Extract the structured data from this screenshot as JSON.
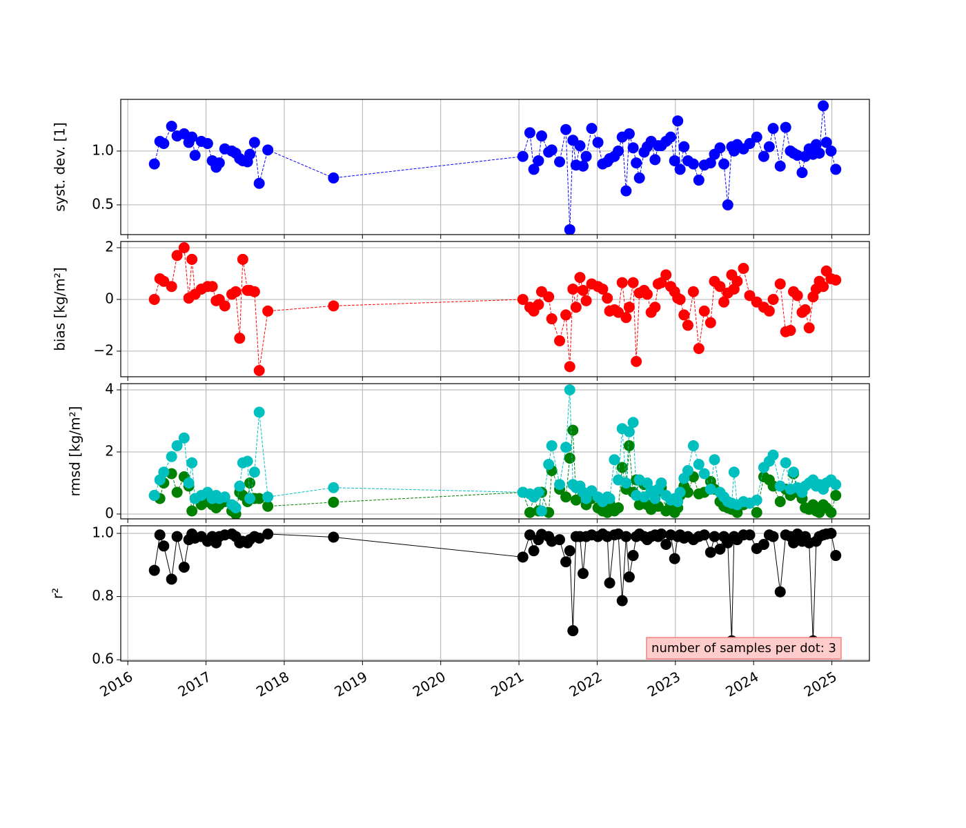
{
  "chart_data": [
    {
      "type": "line",
      "ylabel": "syst. dev. [1]",
      "line_style": "dashed",
      "grid": true,
      "xlim": [
        2015.91,
        2025.48
      ],
      "xticks": [
        2016,
        2017,
        2018,
        2019,
        2020,
        2021,
        2022,
        2023,
        2024,
        2025
      ],
      "ylim": [
        0.224,
        1.48
      ],
      "yticks": [
        {
          "value": 0.5,
          "label": "0.5"
        },
        {
          "value": 1,
          "label": "1.0"
        }
      ],
      "x": [
        2016.34,
        2016.41,
        2016.46,
        2016.56,
        2016.63,
        2016.72,
        2016.78,
        2016.82,
        2016.86,
        2016.94,
        2017.02,
        2017.08,
        2017.13,
        2017.17,
        2017.24,
        2017.33,
        2017.38,
        2017.43,
        2017.47,
        2017.53,
        2017.56,
        2017.62,
        2017.68,
        2017.79,
        2018.63,
        2021.05,
        2021.14,
        2021.19,
        2021.25,
        2021.29,
        2021.38,
        2021.42,
        2021.52,
        2021.6,
        2021.65,
        2021.69,
        2021.73,
        2021.78,
        2021.82,
        2021.86,
        2021.93,
        2022.01,
        2022.07,
        2022.13,
        2022.16,
        2022.22,
        2022.27,
        2022.32,
        2022.37,
        2022.41,
        2022.46,
        2022.5,
        2022.54,
        2022.6,
        2022.64,
        2022.69,
        2022.74,
        2022.78,
        2022.82,
        2022.88,
        2022.94,
        2022.99,
        2023.03,
        2023.06,
        2023.11,
        2023.16,
        2023.23,
        2023.3,
        2023.37,
        2023.45,
        2023.5,
        2023.57,
        2023.62,
        2023.67,
        2023.72,
        2023.75,
        2023.79,
        2023.87,
        2023.95,
        2024.04,
        2024.13,
        2024.2,
        2024.25,
        2024.34,
        2024.41,
        2024.47,
        2024.51,
        2024.56,
        2024.62,
        2024.66,
        2024.71,
        2024.76,
        2024.8,
        2024.84,
        2024.89,
        2024.93,
        2024.99,
        2025.05
      ],
      "series": [
        {
          "color": "#0000ff",
          "values": [
            0.88,
            1.09,
            1.07,
            1.23,
            1.14,
            1.16,
            1.08,
            1.13,
            0.96,
            1.09,
            1.07,
            0.91,
            0.85,
            0.89,
            1.02,
            1.0,
            0.98,
            0.93,
            0.91,
            0.9,
            0.97,
            1.08,
            0.7,
            1.01,
            0.75,
            0.95,
            1.17,
            0.83,
            0.91,
            1.14,
            0.99,
            1.01,
            0.9,
            1.2,
            0.27,
            1.1,
            0.87,
            1.05,
            0.86,
            0.95,
            1.21,
            1.08,
            0.88,
            0.9,
            0.93,
            0.95,
            1.0,
            1.13,
            0.63,
            1.16,
            1.03,
            0.89,
            0.75,
            0.99,
            1.04,
            1.09,
            0.92,
            1.05,
            1.05,
            1.09,
            1.13,
            0.91,
            1.28,
            0.83,
            1.04,
            0.91,
            0.88,
            0.73,
            0.87,
            0.89,
            0.97,
            1.03,
            0.88,
            0.5,
            1.04,
            1.0,
            1.06,
            1.02,
            1.07,
            1.13,
            0.95,
            1.04,
            1.21,
            0.86,
            1.22,
            1.0,
            0.98,
            0.96,
            0.8,
            0.95,
            1.02,
            0.97,
            1.06,
            0.98,
            1.42,
            1.08,
            1.0,
            0.83
          ]
        }
      ]
    },
    {
      "type": "line",
      "ylabel": "bias [kg/m²]",
      "line_style": "dashed",
      "grid": true,
      "xlim": [
        2015.91,
        2025.48
      ],
      "xticks": [
        2016,
        2017,
        2018,
        2019,
        2020,
        2021,
        2022,
        2023,
        2024,
        2025
      ],
      "ylim": [
        -2.99,
        2.24
      ],
      "yticks": [
        {
          "value": -2,
          "label": "−2"
        },
        0,
        2
      ],
      "x": [
        2016.34,
        2016.41,
        2016.46,
        2016.56,
        2016.63,
        2016.72,
        2016.78,
        2016.82,
        2016.86,
        2016.94,
        2017.02,
        2017.08,
        2017.13,
        2017.17,
        2017.24,
        2017.33,
        2017.38,
        2017.43,
        2017.47,
        2017.53,
        2017.56,
        2017.62,
        2017.68,
        2017.79,
        2018.63,
        2021.05,
        2021.14,
        2021.19,
        2021.25,
        2021.29,
        2021.38,
        2021.42,
        2021.52,
        2021.6,
        2021.65,
        2021.69,
        2021.73,
        2021.78,
        2021.82,
        2021.86,
        2021.93,
        2022.01,
        2022.07,
        2022.13,
        2022.16,
        2022.22,
        2022.27,
        2022.32,
        2022.37,
        2022.41,
        2022.46,
        2022.5,
        2022.54,
        2022.6,
        2022.64,
        2022.69,
        2022.74,
        2022.78,
        2022.82,
        2022.88,
        2022.94,
        2022.99,
        2023.03,
        2023.06,
        2023.11,
        2023.16,
        2023.23,
        2023.3,
        2023.37,
        2023.45,
        2023.5,
        2023.57,
        2023.62,
        2023.67,
        2023.72,
        2023.75,
        2023.79,
        2023.87,
        2023.95,
        2024.04,
        2024.13,
        2024.2,
        2024.25,
        2024.34,
        2024.41,
        2024.47,
        2024.51,
        2024.56,
        2024.62,
        2024.66,
        2024.71,
        2024.76,
        2024.8,
        2024.84,
        2024.89,
        2024.93,
        2024.99,
        2025.05
      ],
      "series": [
        {
          "color": "#ff0000",
          "values": [
            0.0,
            0.8,
            0.7,
            0.5,
            1.7,
            2.0,
            0.05,
            1.55,
            0.2,
            0.4,
            0.5,
            0.5,
            -0.05,
            0.0,
            -0.25,
            0.2,
            0.3,
            -1.5,
            1.55,
            0.35,
            0.35,
            0.3,
            -2.75,
            -0.45,
            -0.25,
            0.0,
            -0.3,
            -0.45,
            -0.2,
            0.3,
            0.1,
            -0.75,
            -1.6,
            -0.6,
            -2.6,
            0.4,
            -0.3,
            0.85,
            0.35,
            -0.05,
            0.6,
            0.5,
            0.4,
            0.05,
            -0.45,
            -0.4,
            -0.5,
            0.65,
            -0.7,
            -0.3,
            0.65,
            -2.4,
            0.25,
            0.35,
            0.2,
            -0.5,
            -0.3,
            0.6,
            0.65,
            0.95,
            0.5,
            0.3,
            0.05,
            0.0,
            -0.6,
            -1.0,
            0.3,
            -1.9,
            -0.45,
            -0.9,
            0.7,
            0.5,
            -0.1,
            0.25,
            0.95,
            0.4,
            0.7,
            1.2,
            0.15,
            -0.1,
            -0.3,
            -0.45,
            0.0,
            0.6,
            -1.25,
            -1.2,
            0.3,
            0.15,
            -0.5,
            -0.4,
            -1.1,
            0.1,
            0.4,
            0.7,
            0.5,
            1.1,
            0.8,
            0.75
          ]
        }
      ]
    },
    {
      "type": "line",
      "ylabel": "rmsd [kg/m²]",
      "line_style": "dashed",
      "grid": true,
      "xlim": [
        2015.91,
        2025.48
      ],
      "xticks": [
        2016,
        2017,
        2018,
        2019,
        2020,
        2021,
        2022,
        2023,
        2024,
        2025
      ],
      "ylim": [
        -0.156,
        4.2
      ],
      "yticks": [
        0,
        2,
        4
      ],
      "x": [
        2016.34,
        2016.41,
        2016.46,
        2016.56,
        2016.63,
        2016.72,
        2016.78,
        2016.82,
        2016.86,
        2016.94,
        2017.02,
        2017.08,
        2017.13,
        2017.17,
        2017.24,
        2017.33,
        2017.38,
        2017.43,
        2017.47,
        2017.53,
        2017.56,
        2017.62,
        2017.68,
        2017.79,
        2018.63,
        2021.05,
        2021.14,
        2021.19,
        2021.25,
        2021.29,
        2021.38,
        2021.42,
        2021.52,
        2021.6,
        2021.65,
        2021.69,
        2021.73,
        2021.78,
        2021.82,
        2021.86,
        2021.93,
        2022.01,
        2022.07,
        2022.13,
        2022.16,
        2022.22,
        2022.27,
        2022.32,
        2022.37,
        2022.41,
        2022.46,
        2022.5,
        2022.54,
        2022.6,
        2022.64,
        2022.69,
        2022.74,
        2022.78,
        2022.82,
        2022.88,
        2022.94,
        2022.99,
        2023.03,
        2023.06,
        2023.11,
        2023.16,
        2023.23,
        2023.3,
        2023.37,
        2023.45,
        2023.5,
        2023.57,
        2023.62,
        2023.67,
        2023.72,
        2023.75,
        2023.79,
        2023.87,
        2023.95,
        2024.04,
        2024.13,
        2024.2,
        2024.25,
        2024.34,
        2024.41,
        2024.47,
        2024.51,
        2024.56,
        2024.62,
        2024.66,
        2024.71,
        2024.76,
        2024.8,
        2024.84,
        2024.89,
        2024.93,
        2024.99,
        2025.05
      ],
      "series": [
        {
          "color": "#008000",
          "values": [
            0.6,
            0.5,
            1.0,
            1.3,
            0.7,
            1.2,
            0.9,
            0.1,
            0.5,
            0.3,
            0.4,
            0.3,
            0.2,
            0.3,
            0.4,
            0.1,
            0.0,
            0.7,
            0.6,
            0.4,
            1.0,
            0.5,
            0.5,
            0.25,
            0.38,
            0.7,
            0.05,
            0.55,
            0.1,
            0.7,
            0.05,
            1.4,
            0.8,
            0.55,
            1.8,
            2.7,
            0.45,
            0.9,
            0.6,
            0.3,
            0.5,
            0.2,
            0.1,
            0.05,
            0.35,
            0.1,
            0.2,
            1.5,
            0.8,
            2.2,
            0.7,
            1.1,
            0.3,
            0.95,
            0.3,
            0.15,
            0.6,
            0.25,
            0.85,
            0.1,
            0.3,
            0.05,
            0.2,
            0.6,
            0.9,
            0.7,
            1.2,
            0.65,
            0.7,
            1.05,
            0.8,
            0.4,
            0.25,
            0.2,
            0.15,
            0.3,
            0.05,
            0.3,
            0.35,
            0.05,
            1.2,
            1.1,
            0.9,
            0.4,
            0.8,
            0.6,
            1.3,
            0.7,
            0.5,
            0.2,
            0.15,
            0.3,
            0.1,
            0.05,
            0.3,
            0.2,
            0.05,
            0.6
          ]
        },
        {
          "color": "#00bfbf",
          "values": [
            0.6,
            1.1,
            1.35,
            1.85,
            2.2,
            2.45,
            1.0,
            1.65,
            0.5,
            0.6,
            0.7,
            0.5,
            0.6,
            0.5,
            0.55,
            0.3,
            0.2,
            0.9,
            1.65,
            1.7,
            0.5,
            1.35,
            3.28,
            0.55,
            0.85,
            0.7,
            0.65,
            0.55,
            0.7,
            0.1,
            1.6,
            2.2,
            0.95,
            2.15,
            4.0,
            0.95,
            0.85,
            0.9,
            0.7,
            0.5,
            0.75,
            0.55,
            0.4,
            0.55,
            0.5,
            1.75,
            1.1,
            2.75,
            1.0,
            2.65,
            2.95,
            0.6,
            1.1,
            0.55,
            1.0,
            0.75,
            0.5,
            0.8,
            1.0,
            0.6,
            0.45,
            0.5,
            0.4,
            0.7,
            1.15,
            1.4,
            2.2,
            1.6,
            1.3,
            0.8,
            1.75,
            0.7,
            0.55,
            0.4,
            0.35,
            1.35,
            0.3,
            0.4,
            0.35,
            0.45,
            1.5,
            1.7,
            1.9,
            0.9,
            1.65,
            0.8,
            1.35,
            0.85,
            0.7,
            0.9,
            1.0,
            1.1,
            0.9,
            0.95,
            0.8,
            1.0,
            1.1,
            0.95
          ]
        }
      ]
    },
    {
      "type": "line",
      "ylabel": "r²",
      "line_style": "solid",
      "grid": true,
      "xlim": [
        2015.91,
        2025.48
      ],
      "xticks": [
        2016,
        2017,
        2018,
        2019,
        2020,
        2021,
        2022,
        2023,
        2024,
        2025
      ],
      "ylim": [
        0.596,
        1.024
      ],
      "yticks": [
        {
          "value": 0.6,
          "label": "0.6"
        },
        {
          "value": 0.8,
          "label": "0.8"
        },
        {
          "value": 1,
          "label": "1.0"
        }
      ],
      "annotation": "number of samples per dot: 3",
      "x": [
        2016.34,
        2016.41,
        2016.46,
        2016.56,
        2016.63,
        2016.72,
        2016.78,
        2016.82,
        2016.86,
        2016.94,
        2017.02,
        2017.08,
        2017.13,
        2017.17,
        2017.24,
        2017.33,
        2017.38,
        2017.43,
        2017.47,
        2017.53,
        2017.56,
        2017.62,
        2017.68,
        2017.79,
        2018.63,
        2021.05,
        2021.14,
        2021.19,
        2021.25,
        2021.29,
        2021.38,
        2021.42,
        2021.52,
        2021.6,
        2021.65,
        2021.69,
        2021.73,
        2021.78,
        2021.82,
        2021.86,
        2021.93,
        2022.01,
        2022.07,
        2022.13,
        2022.16,
        2022.22,
        2022.27,
        2022.32,
        2022.37,
        2022.41,
        2022.46,
        2022.5,
        2022.54,
        2022.6,
        2022.64,
        2022.69,
        2022.74,
        2022.78,
        2022.82,
        2022.88,
        2022.94,
        2022.99,
        2023.03,
        2023.06,
        2023.11,
        2023.16,
        2023.23,
        2023.3,
        2023.37,
        2023.45,
        2023.5,
        2023.57,
        2023.62,
        2023.67,
        2023.72,
        2023.75,
        2023.79,
        2023.87,
        2023.95,
        2024.04,
        2024.13,
        2024.2,
        2024.25,
        2024.34,
        2024.41,
        2024.47,
        2024.51,
        2024.56,
        2024.62,
        2024.66,
        2024.71,
        2024.76,
        2024.8,
        2024.84,
        2024.89,
        2024.93,
        2024.99,
        2025.05
      ],
      "series": [
        {
          "color": "#000000",
          "values": [
            0.883,
            0.995,
            0.96,
            0.855,
            0.99,
            0.893,
            0.98,
            0.998,
            0.985,
            0.99,
            0.975,
            0.99,
            0.97,
            0.99,
            0.995,
            0.998,
            0.99,
            0.97,
            0.975,
            0.97,
            0.98,
            0.99,
            0.985,
            0.998,
            0.988,
            0.925,
            0.995,
            0.945,
            0.98,
            0.997,
            0.99,
            0.975,
            0.98,
            0.91,
            0.945,
            0.692,
            0.99,
            0.99,
            0.873,
            0.99,
            0.995,
            0.99,
            0.998,
            0.99,
            0.843,
            0.995,
            0.998,
            0.787,
            0.99,
            0.862,
            0.93,
            0.99,
            0.998,
            0.99,
            0.98,
            0.99,
            0.995,
            0.99,
            0.998,
            0.965,
            0.995,
            0.92,
            0.99,
            0.995,
            0.985,
            0.99,
            0.98,
            0.99,
            0.995,
            0.94,
            0.99,
            0.95,
            0.99,
            0.97,
            0.66,
            0.99,
            0.98,
            0.995,
            0.995,
            0.952,
            0.965,
            0.995,
            0.99,
            0.815,
            0.995,
            0.99,
            0.97,
            0.998,
            0.975,
            0.99,
            0.97,
            0.66,
            0.975,
            0.99,
            0.995,
            0.998,
            1.0,
            0.93
          ]
        }
      ]
    }
  ]
}
